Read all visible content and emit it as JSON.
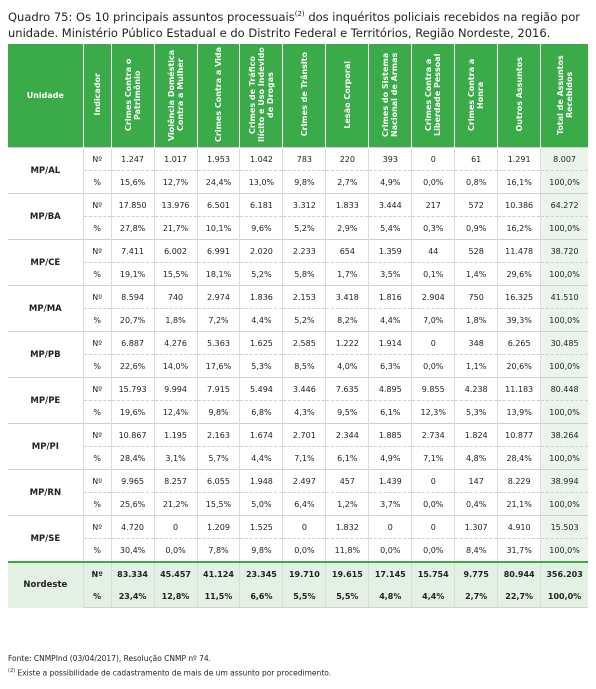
{
  "title": {
    "prefix": "Quadro 75: Os 10 principais assuntos processuais",
    "sup": "(2)",
    "suffix": " dos inquéritos policiais recebidos na região por unidade. Ministério Público Estadual e do Distrito Federal e Territórios, Região Nordeste, 2016."
  },
  "headers": [
    "Unidade",
    "Indicador",
    "Crimes Contra o Patrimônio",
    "Violência Doméstica Contra a Mulher",
    "Crimes Contra a Vida",
    "Crimes de Tráfico Ilícito e Uso Indevido de Drogas",
    "Crimes de Trânsito",
    "Lesão Corporal",
    "Crimes do Sistema Nacional de Armas",
    "Crimes Contra a Liberdade Pessoal",
    "Crimes Contra a Honra",
    "Outros Assuntos",
    "Total de Assuntos Recebidos"
  ],
  "rows": [
    {
      "unit": "MP/AL",
      "n": [
        "Nº",
        "1.247",
        "1.017",
        "1.953",
        "1.042",
        "783",
        "220",
        "393",
        "0",
        "61",
        "1.291",
        "8.007"
      ],
      "p": [
        "%",
        "15,6%",
        "12,7%",
        "24,4%",
        "13,0%",
        "9,8%",
        "2,7%",
        "4,9%",
        "0,0%",
        "0,8%",
        "16,1%",
        "100,0%"
      ]
    },
    {
      "unit": "MP/BA",
      "n": [
        "Nº",
        "17.850",
        "13.976",
        "6.501",
        "6.181",
        "3.312",
        "1.833",
        "3.444",
        "217",
        "572",
        "10.386",
        "64.272"
      ],
      "p": [
        "%",
        "27,8%",
        "21,7%",
        "10,1%",
        "9,6%",
        "5,2%",
        "2,9%",
        "5,4%",
        "0,3%",
        "0,9%",
        "16,2%",
        "100,0%"
      ]
    },
    {
      "unit": "MP/CE",
      "n": [
        "Nº",
        "7.411",
        "6.002",
        "6.991",
        "2.020",
        "2.233",
        "654",
        "1.359",
        "44",
        "528",
        "11.478",
        "38.720"
      ],
      "p": [
        "%",
        "19,1%",
        "15,5%",
        "18,1%",
        "5,2%",
        "5,8%",
        "1,7%",
        "3,5%",
        "0,1%",
        "1,4%",
        "29,6%",
        "100,0%"
      ]
    },
    {
      "unit": "MP/MA",
      "n": [
        "Nº",
        "8.594",
        "740",
        "2.974",
        "1.836",
        "2.153",
        "3.418",
        "1.816",
        "2.904",
        "750",
        "16.325",
        "41.510"
      ],
      "p": [
        "%",
        "20,7%",
        "1,8%",
        "7,2%",
        "4,4%",
        "5,2%",
        "8,2%",
        "4,4%",
        "7,0%",
        "1,8%",
        "39,3%",
        "100,0%"
      ]
    },
    {
      "unit": "MP/PB",
      "n": [
        "Nº",
        "6.887",
        "4.276",
        "5.363",
        "1.625",
        "2.585",
        "1.222",
        "1.914",
        "0",
        "348",
        "6.265",
        "30.485"
      ],
      "p": [
        "%",
        "22,6%",
        "14,0%",
        "17,6%",
        "5,3%",
        "8,5%",
        "4,0%",
        "6,3%",
        "0,0%",
        "1,1%",
        "20,6%",
        "100,0%"
      ]
    },
    {
      "unit": "MP/PE",
      "n": [
        "Nº",
        "15.793",
        "9.994",
        "7.915",
        "5.494",
        "3.446",
        "7.635",
        "4.895",
        "9.855",
        "4.238",
        "11.183",
        "80.448"
      ],
      "p": [
        "%",
        "19,6%",
        "12,4%",
        "9,8%",
        "6,8%",
        "4,3%",
        "9,5%",
        "6,1%",
        "12,3%",
        "5,3%",
        "13,9%",
        "100,0%"
      ]
    },
    {
      "unit": "MP/PI",
      "n": [
        "Nº",
        "10.867",
        "1.195",
        "2.163",
        "1.674",
        "2.701",
        "2.344",
        "1.885",
        "2.734",
        "1.824",
        "10.877",
        "38.264"
      ],
      "p": [
        "%",
        "28,4%",
        "3,1%",
        "5,7%",
        "4,4%",
        "7,1%",
        "6,1%",
        "4,9%",
        "7,1%",
        "4,8%",
        "28,4%",
        "100,0%"
      ]
    },
    {
      "unit": "MP/RN",
      "n": [
        "Nº",
        "9.965",
        "8.257",
        "6.055",
        "1.948",
        "2.497",
        "457",
        "1.439",
        "0",
        "147",
        "8.229",
        "38.994"
      ],
      "p": [
        "%",
        "25,6%",
        "21,2%",
        "15,5%",
        "5,0%",
        "6,4%",
        "1,2%",
        "3,7%",
        "0,0%",
        "0,4%",
        "21,1%",
        "100,0%"
      ]
    },
    {
      "unit": "MP/SE",
      "n": [
        "Nº",
        "4.720",
        "0",
        "1.209",
        "1.525",
        "0",
        "1.832",
        "0",
        "0",
        "1.307",
        "4.910",
        "15.503"
      ],
      "p": [
        "%",
        "30,4%",
        "0,0%",
        "7,8%",
        "9,8%",
        "0,0%",
        "11,8%",
        "0,0%",
        "0,0%",
        "8,4%",
        "31,7%",
        "100,0%"
      ]
    }
  ],
  "total": {
    "unit": "Nordeste",
    "n": [
      "Nº",
      "83.334",
      "45.457",
      "41.124",
      "23.345",
      "19.710",
      "19.615",
      "17.145",
      "15.754",
      "9.775",
      "80.944",
      "356.203"
    ],
    "p": [
      "%",
      "23,4%",
      "12,8%",
      "11,5%",
      "6,6%",
      "5,5%",
      "5,5%",
      "4,8%",
      "4,4%",
      "2,7%",
      "22,7%",
      "100,0%"
    ]
  },
  "footnotes": {
    "source": "Fonte: CNMPInd (03/04/2017), Resolução CNMP nº 74.",
    "note_sup": "(2)",
    "note": " Existe a possibilidade de cadastramento de mais de um assunto por procedimento."
  },
  "colors": {
    "header_green": "#3aab48",
    "total_bg": "#e3f1e3"
  }
}
